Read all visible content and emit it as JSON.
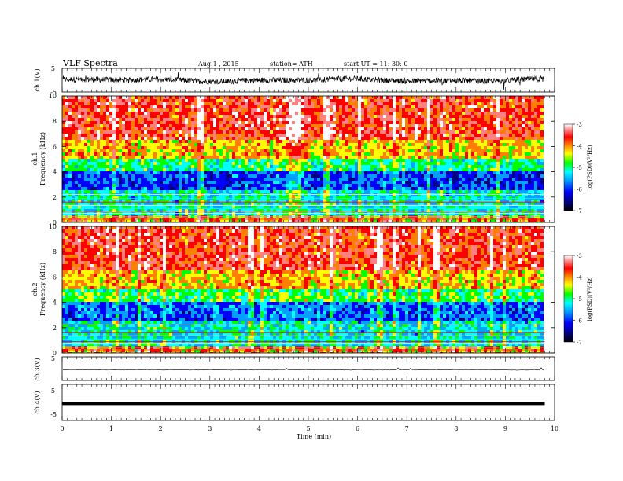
{
  "header": {
    "title": "VLF  Spectra",
    "date": "Aug.1  , 2015",
    "station": "station= ATH",
    "start": "start  UT  =    11: 30: 0"
  },
  "colors": {
    "colormap": [
      "#000000",
      "#000080",
      "#0000ff",
      "#00a0ff",
      "#00ffff",
      "#00ff00",
      "#ffff00",
      "#ff8000",
      "#ff0000",
      "#ff8080",
      "#ffffff"
    ],
    "trace": "#000000"
  },
  "chart_data": [
    {
      "type": "line",
      "ylabel": "ch.1(V)",
      "ylim": [
        -5,
        5
      ],
      "y_ticks": [
        "5",
        "-5"
      ],
      "description_of_trace": "noisy broadband signal around ~0 V, amplitude about ±2 V with spikes"
    },
    {
      "type": "heatmap",
      "ylabel_line1": "ch.1",
      "ylabel_line2": "Frequency  (kHz)",
      "ylim": [
        0,
        10
      ],
      "y_ticks": [
        "0",
        "2",
        "4",
        "6",
        "8",
        "10"
      ],
      "colorbar": {
        "label": "log(PSD)(V²/Hz)",
        "range": [
          -7,
          -3
        ],
        "ticks": [
          "-3",
          "-4",
          "-5",
          "-6",
          "-7"
        ]
      }
    },
    {
      "type": "heatmap",
      "ylabel_line1": "ch.2",
      "ylabel_line2": "Frequency  (kHz)",
      "ylim": [
        0,
        10
      ],
      "y_ticks": [
        "0",
        "2",
        "4",
        "6",
        "8",
        "10"
      ],
      "colorbar": {
        "label": "log(PSD)(V²/Hz)",
        "range": [
          -7,
          -3
        ],
        "ticks": [
          "-3",
          "-4",
          "-5",
          "-6",
          "-7"
        ]
      }
    },
    {
      "type": "line",
      "ylabel": "ch.3(V)",
      "ylim": [
        -5,
        5
      ],
      "y_ticks": [
        "5",
        "-5"
      ],
      "level": -0.5
    },
    {
      "type": "line",
      "ylabel": "ch.4(V)",
      "ylim": [
        -5,
        5
      ],
      "y_ticks": [
        "5",
        "-5"
      ],
      "level": -0.3
    }
  ],
  "x_axis": {
    "label": "Time  (min)",
    "range": [
      0,
      10
    ],
    "ticks": [
      "0",
      "1",
      "2",
      "3",
      "4",
      "5",
      "6",
      "7",
      "8",
      "9",
      "10"
    ],
    "data_end_min": 9.8
  }
}
